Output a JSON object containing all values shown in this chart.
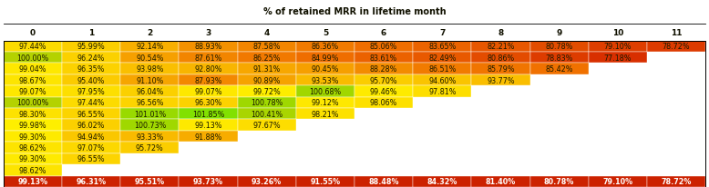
{
  "title": "% of retained MRR in lifetime month",
  "col_labels": [
    "0",
    "1",
    "2",
    "3",
    "4",
    "5",
    "6",
    "7",
    "8",
    "9",
    "10",
    "11"
  ],
  "table_data": [
    [
      97.44,
      95.99,
      92.14,
      88.93,
      87.58,
      86.36,
      85.06,
      83.65,
      82.21,
      80.78,
      79.1,
      78.72
    ],
    [
      100.0,
      96.24,
      90.54,
      87.61,
      86.25,
      84.99,
      83.61,
      82.49,
      80.86,
      78.83,
      77.18,
      null
    ],
    [
      99.04,
      96.35,
      93.98,
      92.8,
      91.31,
      90.45,
      88.28,
      86.51,
      85.79,
      85.42,
      null,
      null
    ],
    [
      98.67,
      95.4,
      91.1,
      87.93,
      90.89,
      93.53,
      95.7,
      94.6,
      93.77,
      null,
      null,
      null
    ],
    [
      99.07,
      97.95,
      96.04,
      99.07,
      99.72,
      100.68,
      99.46,
      97.81,
      null,
      null,
      null,
      null
    ],
    [
      100.0,
      97.44,
      96.56,
      96.3,
      100.78,
      99.12,
      98.06,
      null,
      null,
      null,
      null,
      null
    ],
    [
      98.3,
      96.55,
      101.01,
      101.85,
      100.41,
      98.21,
      null,
      null,
      null,
      null,
      null,
      null
    ],
    [
      99.98,
      96.02,
      100.73,
      99.13,
      97.67,
      null,
      null,
      null,
      null,
      null,
      null,
      null
    ],
    [
      99.3,
      94.94,
      93.33,
      91.88,
      null,
      null,
      null,
      null,
      null,
      null,
      null,
      null
    ],
    [
      98.62,
      97.07,
      95.72,
      null,
      null,
      null,
      null,
      null,
      null,
      null,
      null,
      null
    ],
    [
      99.3,
      96.55,
      null,
      null,
      null,
      null,
      null,
      null,
      null,
      null,
      null,
      null
    ],
    [
      98.62,
      null,
      null,
      null,
      null,
      null,
      null,
      null,
      null,
      null,
      null,
      null
    ],
    [
      99.13,
      96.31,
      95.51,
      93.73,
      93.26,
      91.55,
      88.48,
      84.32,
      81.4,
      80.78,
      79.1,
      78.72
    ]
  ],
  "font_size": 5.8,
  "header_font_size": 6.5,
  "title_font_size": 7.0,
  "summary_bg": "#cc2200",
  "text_color": "#1a1a00",
  "colormap_min": 75.0,
  "colormap_max": 103.0
}
